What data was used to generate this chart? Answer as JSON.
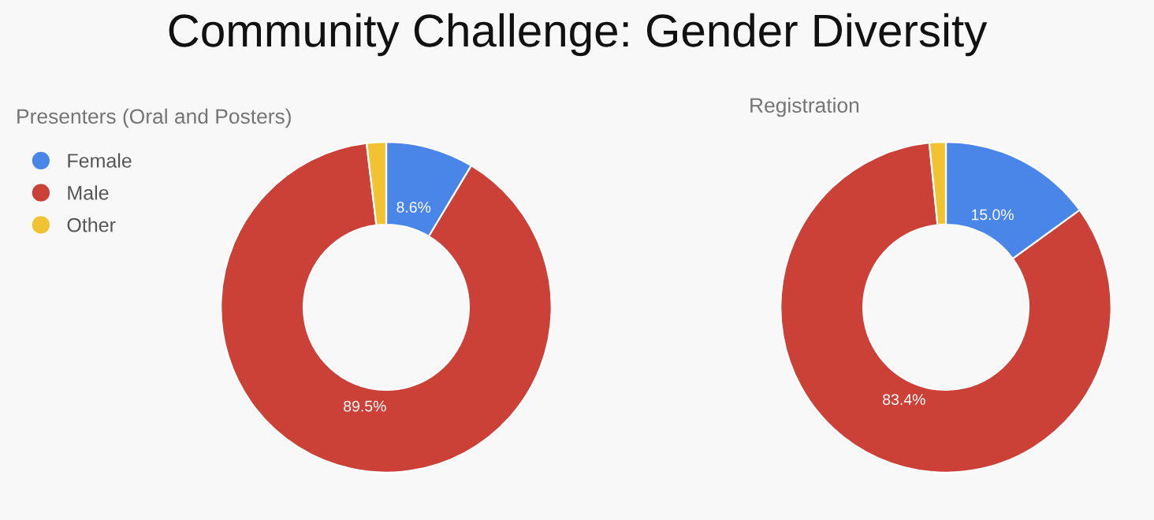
{
  "chart_data": [
    {
      "type": "donut",
      "title": "Community Challenge: Gender Diversity",
      "subtitle": "Presenters (Oral and Posters)",
      "categories": [
        "Female",
        "Male",
        "Other"
      ],
      "values": [
        8.6,
        89.5,
        1.9
      ],
      "colors": [
        "#4a86e8",
        "#cc4137",
        "#f1c232"
      ],
      "value_labels": [
        "8.6%",
        "89.5%",
        null
      ],
      "legend": "top left"
    },
    {
      "type": "donut",
      "subtitle": "Registration",
      "categories": [
        null,
        null,
        null
      ],
      "values": [
        15.0,
        83.4,
        1.6
      ],
      "colors": [
        "#4a86e8",
        "#cc4137",
        "#f1c232"
      ],
      "value_labels": [
        "15.0%",
        "83.4%",
        null
      ]
    }
  ]
}
